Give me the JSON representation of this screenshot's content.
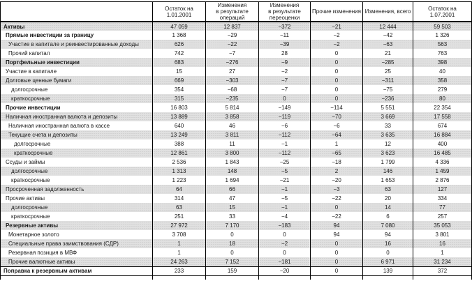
{
  "table": {
    "headers": [
      "",
      "Остаток на\n1.01.2001",
      "Изменения\nв результате\nопераций",
      "Изменения\nв результате\nпереоценки",
      "Прочие изменения",
      "Изменения, всего",
      "Остаток на\n1.07.2001"
    ],
    "rows": [
      {
        "label": "Активы",
        "indent": 0,
        "bold": true,
        "shaded": true,
        "values": [
          "47 059",
          "12 837",
          "−372",
          "−21",
          "12 444",
          "59 503"
        ]
      },
      {
        "label": "Прямые инвестиции за границу",
        "indent": 1,
        "bold": true,
        "shaded": false,
        "values": [
          "1 368",
          "−29",
          "−11",
          "−2",
          "−42",
          "1 326"
        ]
      },
      {
        "label": "Участие в капитале и реинвестированные доходы",
        "indent": 2,
        "bold": false,
        "shaded": true,
        "values": [
          "626",
          "−22",
          "−39",
          "−2",
          "−63",
          "563"
        ]
      },
      {
        "label": "Прочий капитал",
        "indent": 2,
        "bold": false,
        "shaded": false,
        "values": [
          "742",
          "−7",
          "28",
          "0",
          "21",
          "763"
        ]
      },
      {
        "label": "Портфельные инвестиции",
        "indent": 1,
        "bold": true,
        "shaded": true,
        "values": [
          "683",
          "−276",
          "−9",
          "0",
          "−285",
          "398"
        ]
      },
      {
        "label": "Участие в капитале",
        "indent": 1,
        "bold": false,
        "shaded": false,
        "values": [
          "15",
          "27",
          "−2",
          "0",
          "25",
          "40"
        ]
      },
      {
        "label": "Долговые ценные бумаги",
        "indent": 1,
        "bold": false,
        "shaded": true,
        "values": [
          "669",
          "−303",
          "−7",
          "0",
          "−311",
          "358"
        ]
      },
      {
        "label": "долгосрочные",
        "indent": 3,
        "bold": false,
        "shaded": false,
        "values": [
          "354",
          "−68",
          "−7",
          "0",
          "−75",
          "279"
        ]
      },
      {
        "label": "краткосрочные",
        "indent": 3,
        "bold": false,
        "shaded": true,
        "values": [
          "315",
          "−235",
          "0",
          "0",
          "−236",
          "80"
        ]
      },
      {
        "label": "Прочие инвестиции",
        "indent": 1,
        "bold": true,
        "shaded": false,
        "values": [
          "16 803",
          "5 814",
          "−149",
          "−114",
          "5 551",
          "22 354"
        ]
      },
      {
        "label": "Наличная иностранная валюта и депозиты",
        "indent": 1,
        "bold": false,
        "shaded": true,
        "values": [
          "13 889",
          "3 858",
          "−119",
          "−70",
          "3 669",
          "17 558"
        ]
      },
      {
        "label": "Наличная иностранная валюта в кассе",
        "indent": 2,
        "bold": false,
        "shaded": false,
        "values": [
          "640",
          "46",
          "−6",
          "−6",
          "33",
          "674"
        ]
      },
      {
        "label": "Текущие счета и депозиты",
        "indent": 2,
        "bold": false,
        "shaded": true,
        "values": [
          "13 249",
          "3 811",
          "−112",
          "−64",
          "3 635",
          "16 884"
        ]
      },
      {
        "label": "долгосрочные",
        "indent": 4,
        "bold": false,
        "shaded": false,
        "values": [
          "388",
          "11",
          "−1",
          "1",
          "12",
          "400"
        ]
      },
      {
        "label": "краткосрочные",
        "indent": 4,
        "bold": false,
        "shaded": true,
        "values": [
          "12 861",
          "3 800",
          "−112",
          "−65",
          "3 623",
          "16 485"
        ]
      },
      {
        "label": "Ссуды и займы",
        "indent": 1,
        "bold": false,
        "shaded": false,
        "values": [
          "2 536",
          "1 843",
          "−25",
          "−18",
          "1 799",
          "4 336"
        ]
      },
      {
        "label": "долгосрочные",
        "indent": 3,
        "bold": false,
        "shaded": true,
        "values": [
          "1 313",
          "148",
          "−5",
          "2",
          "146",
          "1 459"
        ]
      },
      {
        "label": "краткосрочные",
        "indent": 3,
        "bold": false,
        "shaded": false,
        "values": [
          "1 223",
          "1 694",
          "−21",
          "−20",
          "1 653",
          "2 876"
        ]
      },
      {
        "label": "Просроченная задолженность",
        "indent": 1,
        "bold": false,
        "shaded": true,
        "values": [
          "64",
          "66",
          "−1",
          "−3",
          "63",
          "127"
        ]
      },
      {
        "label": "Прочие активы",
        "indent": 1,
        "bold": false,
        "shaded": false,
        "values": [
          "314",
          "47",
          "−5",
          "−22",
          "20",
          "334"
        ]
      },
      {
        "label": "долгосрочные",
        "indent": 3,
        "bold": false,
        "shaded": true,
        "values": [
          "63",
          "15",
          "−1",
          "0",
          "14",
          "77"
        ]
      },
      {
        "label": "краткосрочные",
        "indent": 3,
        "bold": false,
        "shaded": false,
        "values": [
          "251",
          "33",
          "−4",
          "−22",
          "6",
          "257"
        ]
      },
      {
        "label": "Резервные активы",
        "indent": 1,
        "bold": true,
        "shaded": true,
        "values": [
          "27 972",
          "7 170",
          "−183",
          "94",
          "7 080",
          "35 053"
        ]
      },
      {
        "label": "Монетарное золото",
        "indent": 2,
        "bold": false,
        "shaded": false,
        "values": [
          "3 708",
          "0",
          "0",
          "94",
          "94",
          "3 801"
        ]
      },
      {
        "label": "Специальные права заимствования (СДР)",
        "indent": 2,
        "bold": false,
        "shaded": true,
        "values": [
          "1",
          "18",
          "−2",
          "0",
          "16",
          "16"
        ]
      },
      {
        "label": "Резервная позиция в МВФ",
        "indent": 2,
        "bold": false,
        "shaded": false,
        "values": [
          "1",
          "0",
          "0",
          "0",
          "0",
          "1"
        ]
      },
      {
        "label": "Прочие валютные активы",
        "indent": 2,
        "bold": false,
        "shaded": true,
        "values": [
          "24 263",
          "7 152",
          "−181",
          "0",
          "6 971",
          "31 234"
        ]
      },
      {
        "label": "Поправка к резервным активам",
        "indent": 0,
        "bold": true,
        "shaded": false,
        "topline": true,
        "lastline": true,
        "values": [
          "233",
          "159",
          "−20",
          "0",
          "139",
          "372"
        ]
      }
    ]
  },
  "colors": {
    "border": "#000000",
    "shaded_row_bg": "#e0e0e0",
    "shaded_row_dot": "#c3c3c3"
  }
}
